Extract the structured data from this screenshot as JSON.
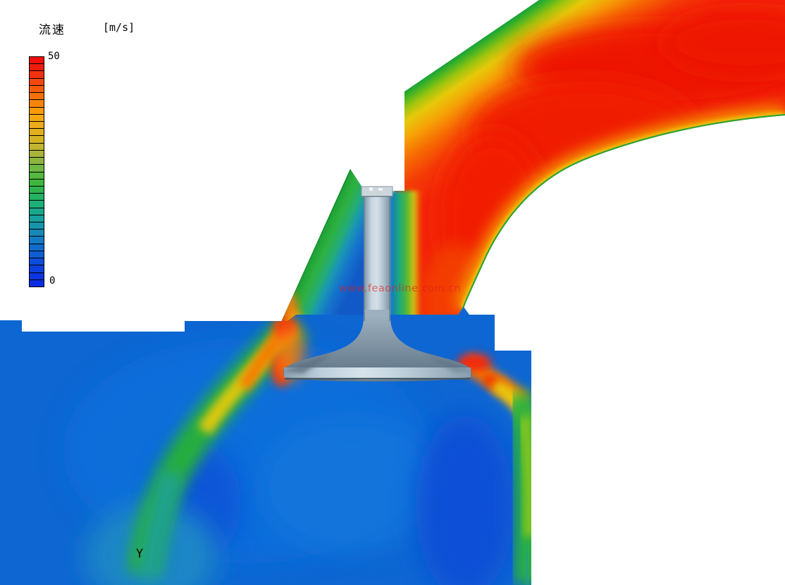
{
  "legend": {
    "title": "流速",
    "unit_label": "[m/s]",
    "max_label": "50",
    "min_label": "0",
    "min_value": 0,
    "max_value": 50,
    "levels": 32,
    "colorbar_colors_top_to_bottom": [
      "#ee0f0a",
      "#ee1d0d",
      "#f0320e",
      "#f2470d",
      "#f45c0c",
      "#f5700b",
      "#f6840a",
      "#f79909",
      "#f3a813",
      "#ecac1a",
      "#e0b01e",
      "#d4b322",
      "#c3b430",
      "#a8b43a",
      "#8cb53f",
      "#6eb743",
      "#52b83f",
      "#3eb73c",
      "#2eb44e",
      "#25b164",
      "#1fae78",
      "#1aa88c",
      "#17a09c",
      "#1595ab",
      "#1489b8",
      "#127bc3",
      "#106ccc",
      "#0e5dd3",
      "#0c4ed9",
      "#0b40dd",
      "#0a35e0",
      "#0a2ce2"
    ]
  },
  "annotations": {
    "watermark": "www.feaonline.com.cn",
    "axis_label": "Y"
  },
  "colors": {
    "background": "#ffffff",
    "duct_core_red": "#f32508",
    "boundary_edge_green": "#1fa436",
    "chamber_blue": "#0d66d2",
    "jet_green": "#28ae3c",
    "jet_yellow": "#dcc80f",
    "jet_orange": "#f57c06",
    "hotspot_red": "#f22807",
    "swirl_cyan": "#1b86c6",
    "valve_metal_light": "#d4e0e8",
    "valve_metal_mid": "#9db0bf",
    "valve_metal_dark": "#5f7587",
    "watermark_red": "#e11d1d",
    "text_black": "#000000"
  },
  "chart_data": {
    "type": "heatmap",
    "title": "流速",
    "unit": "m/s",
    "colorbar": {
      "min": 0,
      "max": 50,
      "levels": 32,
      "orientation": "vertical",
      "position": "top-left"
    },
    "scene": "CFD velocity contour of intake air flow through an engine intake port and open poppet valve into the cylinder",
    "regions": [
      {
        "name": "intake-port-core",
        "approx_velocity_m_s": [
          45,
          50
        ]
      },
      {
        "name": "intake-port-upper-wall-layer",
        "approx_velocity_m_s": [
          10,
          35
        ]
      },
      {
        "name": "port-left-branch-above-valve",
        "approx_velocity_m_s": [
          12,
          28
        ]
      },
      {
        "name": "wake-beside-valve-stem",
        "approx_velocity_m_s": [
          3,
          10
        ]
      },
      {
        "name": "valve-seat-left-gap-jet-peak",
        "approx_velocity_m_s": [
          40,
          50
        ]
      },
      {
        "name": "valve-seat-right-gap-jet-peak",
        "approx_velocity_m_s": [
          40,
          50
        ]
      },
      {
        "name": "left-cylinder-jet-decaying",
        "approx_velocity_m_s": [
          8,
          30
        ]
      },
      {
        "name": "right-wall-jet-decaying",
        "approx_velocity_m_s": [
          10,
          30
        ]
      },
      {
        "name": "cylinder-bulk",
        "approx_velocity_m_s": [
          2,
          8
        ]
      },
      {
        "name": "swirl-near-axis-label",
        "approx_velocity_m_s": [
          8,
          12
        ]
      }
    ]
  }
}
